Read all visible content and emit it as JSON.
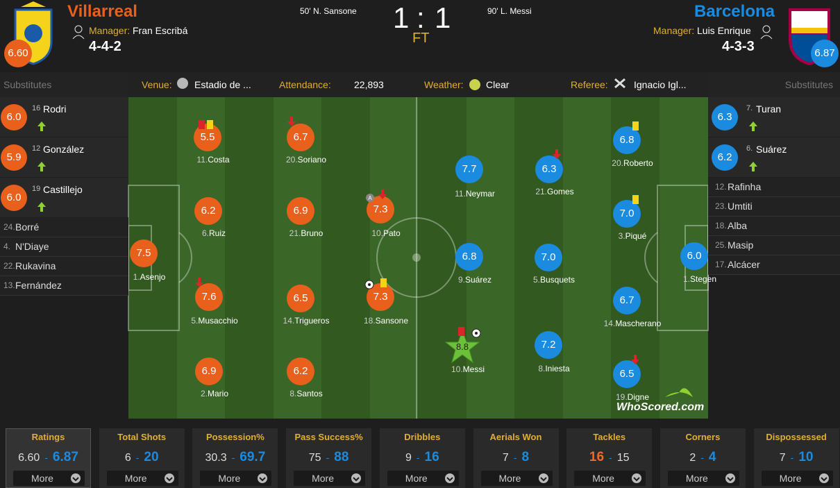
{
  "header": {
    "home": {
      "team": "Villarreal",
      "rating": "6.60",
      "manager_label": "Manager:",
      "manager": "Fran Escribá",
      "formation": "4-4-2",
      "goal": "50' N. Sansone"
    },
    "away": {
      "team": "Barcelona",
      "rating": "6.87",
      "manager_label": "Manager:",
      "manager": "Luis Enrique",
      "formation": "4-3-3",
      "goal": "90' L. Messi"
    },
    "score_home": "1",
    "score_sep": ":",
    "score_away": "1",
    "status": "FT"
  },
  "info": [
    {
      "label": "Venue:",
      "value": "Estadio de ..."
    },
    {
      "label": "Attendance:",
      "value": "22,893"
    },
    {
      "label": "Weather:",
      "value": "Clear"
    },
    {
      "label": "Referee:",
      "value": "Ignacio Igl..."
    }
  ],
  "substitutes": {
    "home": {
      "title": "Substitutes",
      "players": [
        {
          "number": "16",
          "name": "Rodri",
          "rating": "6.0"
        },
        {
          "number": "12",
          "name": "González",
          "rating": "5.9"
        },
        {
          "number": "19",
          "name": "Castillejo",
          "rating": "6.0"
        },
        {
          "number": "24.",
          "name": "Borré"
        },
        {
          "number": "4.",
          "name": "N'Diaye"
        },
        {
          "number": "22.",
          "name": "Rukavina"
        },
        {
          "number": "13.",
          "name": "Fernández"
        }
      ]
    },
    "away": {
      "title": "Substitutes",
      "players": [
        {
          "number": "7.",
          "name": "Turan",
          "rating": "6.3"
        },
        {
          "number": "6.",
          "name": "Suárez",
          "rating": "6.2"
        },
        {
          "number": "12.",
          "name": "Rafinha"
        },
        {
          "number": "23.",
          "name": "Umtiti"
        },
        {
          "number": "18.",
          "name": "Alba"
        },
        {
          "number": "25.",
          "name": "Masip"
        },
        {
          "number": "17.",
          "name": "Alcácer"
        }
      ]
    }
  },
  "lineups": {
    "home": [
      {
        "number": "1.",
        "name": "Asenjo",
        "rating": "7.5"
      },
      {
        "number": "11.",
        "name": "Costa",
        "rating": "5.5"
      },
      {
        "number": "20.",
        "name": "Soriano",
        "rating": "6.7"
      },
      {
        "number": "6.",
        "name": "Ruiz",
        "rating": "6.2"
      },
      {
        "number": "21.",
        "name": "Bruno",
        "rating": "6.9"
      },
      {
        "number": "10.",
        "name": "Pato",
        "rating": "7.3"
      },
      {
        "number": "5.",
        "name": "Musacchio",
        "rating": "7.6"
      },
      {
        "number": "14.",
        "name": "Trigueros",
        "rating": "6.5"
      },
      {
        "number": "18.",
        "name": "Sansone",
        "rating": "7.3"
      },
      {
        "number": "2.",
        "name": "Mario",
        "rating": "6.9"
      },
      {
        "number": "8.",
        "name": "Santos",
        "rating": "6.2"
      }
    ],
    "away": [
      {
        "number": "1.",
        "name": "Stegen",
        "rating": "6.0"
      },
      {
        "number": "3.",
        "name": "Piqué",
        "rating": "7.0"
      },
      {
        "number": "14.",
        "name": "Mascherano",
        "rating": "6.7"
      },
      {
        "number": "20.",
        "name": "Roberto",
        "rating": "6.8"
      },
      {
        "number": "19.",
        "name": "Digne",
        "rating": "6.5"
      },
      {
        "number": "5.",
        "name": "Busquets",
        "rating": "7.0"
      },
      {
        "number": "21.",
        "name": "Gomes",
        "rating": "6.3"
      },
      {
        "number": "8.",
        "name": "Iniesta",
        "rating": "7.2"
      },
      {
        "number": "9.",
        "name": "Suárez",
        "rating": "6.8"
      },
      {
        "number": "11.",
        "name": "Neymar",
        "rating": "7.7"
      },
      {
        "number": "10.",
        "name": "Messi",
        "rating": "8.8"
      }
    ]
  },
  "watermark": "WhoScored.com",
  "stats": {
    "separator": "-",
    "more": "More",
    "items": [
      {
        "label": "Ratings",
        "home": "6.60",
        "away": "6.87",
        "highlight": "away"
      },
      {
        "label": "Total Shots",
        "home": 6,
        "away": 20,
        "highlight": "away"
      },
      {
        "label": "Possession%",
        "home": 30.3,
        "away": 69.7,
        "highlight": "away"
      },
      {
        "label": "Pass Success%",
        "home": 75,
        "away": 88,
        "highlight": "away"
      },
      {
        "label": "Dribbles",
        "home": 9,
        "away": 16,
        "highlight": "away"
      },
      {
        "label": "Aerials Won",
        "home": 7,
        "away": 8,
        "highlight": "away"
      },
      {
        "label": "Tackles",
        "home": 16,
        "away": 15,
        "highlight": "home"
      },
      {
        "label": "Corners",
        "home": 2,
        "away": 4,
        "highlight": "away"
      },
      {
        "label": "Dispossessed",
        "home": 7,
        "away": 10,
        "highlight": "away"
      }
    ]
  }
}
